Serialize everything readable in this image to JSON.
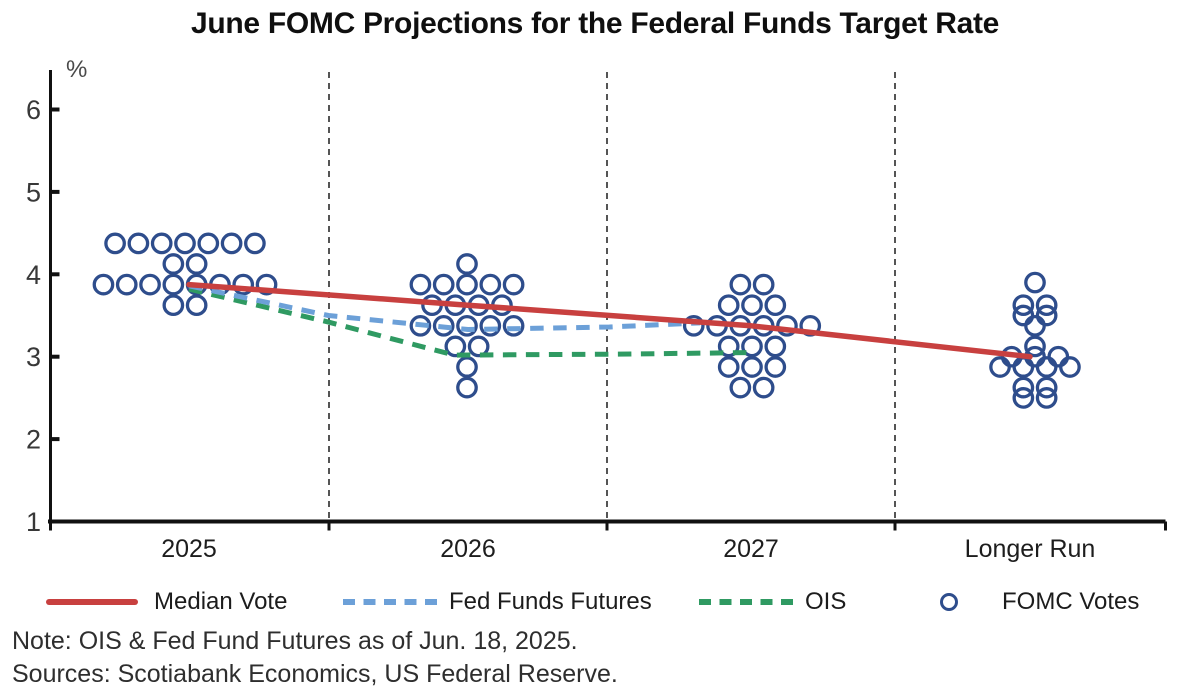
{
  "title": "June FOMC Projections for the Federal Funds Target Rate",
  "chart_data": {
    "type": "scatter",
    "title": "June FOMC Projections for the Federal Funds Target Rate",
    "unit_label": "%",
    "x_categories": [
      "2025",
      "2026",
      "2027",
      "Longer Run"
    ],
    "y_axis": {
      "min": 1,
      "max": 6.4,
      "ticks": [
        6,
        5,
        4,
        3,
        2,
        1
      ]
    },
    "legend_position": "bottom",
    "grid": false,
    "series": [
      {
        "name": "Median Vote",
        "type": "line",
        "style": "solid",
        "color": "#c8403f",
        "points": [
          {
            "x": 0,
            "rate": 3.875
          },
          {
            "x": 1,
            "rate": 3.625
          },
          {
            "x": 2,
            "rate": 3.375
          },
          {
            "x": 3,
            "rate": 3.0
          }
        ]
      },
      {
        "name": "Fed Funds Futures",
        "type": "line",
        "style": "dashed",
        "color": "#6ca0d8",
        "points": [
          {
            "x": 0,
            "rate": 3.86
          },
          {
            "x": 0.5,
            "rate": 3.5
          },
          {
            "x": 1,
            "rate": 3.33
          },
          {
            "x": 1.5,
            "rate": 3.36
          },
          {
            "x": 1.82,
            "rate": 3.41
          }
        ]
      },
      {
        "name": "OIS",
        "type": "line",
        "style": "dashed",
        "color": "#2f9a62",
        "points": [
          {
            "x": 0,
            "rate": 3.82
          },
          {
            "x": 0.5,
            "rate": 3.42
          },
          {
            "x": 0.95,
            "rate": 3.02
          },
          {
            "x": 1.5,
            "rate": 3.03
          },
          {
            "x": 2,
            "rate": 3.05
          }
        ]
      },
      {
        "name": "FOMC Votes",
        "type": "dots",
        "color": "#2e4d8c",
        "votes": [
          {
            "category": "2025",
            "distribution": [
              {
                "rate": 4.375,
                "count": 7
              },
              {
                "rate": 4.125,
                "count": 2
              },
              {
                "rate": 3.875,
                "count": 8
              },
              {
                "rate": 3.625,
                "count": 2
              }
            ]
          },
          {
            "category": "2026",
            "distribution": [
              {
                "rate": 4.125,
                "count": 1
              },
              {
                "rate": 3.875,
                "count": 5
              },
              {
                "rate": 3.625,
                "count": 4
              },
              {
                "rate": 3.375,
                "count": 5
              },
              {
                "rate": 3.125,
                "count": 2
              },
              {
                "rate": 2.875,
                "count": 1
              },
              {
                "rate": 2.625,
                "count": 1
              }
            ]
          },
          {
            "category": "2027",
            "distribution": [
              {
                "rate": 3.875,
                "count": 2
              },
              {
                "rate": 3.625,
                "count": 3
              },
              {
                "rate": 3.375,
                "count": 6
              },
              {
                "rate": 3.125,
                "count": 3
              },
              {
                "rate": 2.875,
                "count": 3
              },
              {
                "rate": 2.625,
                "count": 2
              }
            ]
          },
          {
            "category": "Longer Run",
            "distribution": [
              {
                "rate": 3.9,
                "count": 1
              },
              {
                "rate": 3.625,
                "count": 2
              },
              {
                "rate": 3.5,
                "count": 2
              },
              {
                "rate": 3.375,
                "count": 1
              },
              {
                "rate": 3.125,
                "count": 1
              },
              {
                "rate": 3.0,
                "count": 3
              },
              {
                "rate": 2.875,
                "count": 4
              },
              {
                "rate": 2.625,
                "count": 2
              },
              {
                "rate": 2.5,
                "count": 2
              }
            ]
          }
        ]
      }
    ]
  },
  "legend": {
    "items": [
      {
        "label": "Median Vote",
        "swatch": "solid-line",
        "color": "#c8403f"
      },
      {
        "label": "Fed Funds Futures",
        "swatch": "dashed-line",
        "color": "#6ca0d8"
      },
      {
        "label": "OIS",
        "swatch": "dashed-line",
        "color": "#2f9a62"
      },
      {
        "label": "FOMC Votes",
        "swatch": "circle",
        "color": "#2e4d8c"
      }
    ]
  },
  "notes": {
    "note": "Note: OIS & Fed Fund Futures as of Jun. 18, 2025.",
    "sources": "Sources: Scotiabank Economics, US Federal Reserve."
  }
}
